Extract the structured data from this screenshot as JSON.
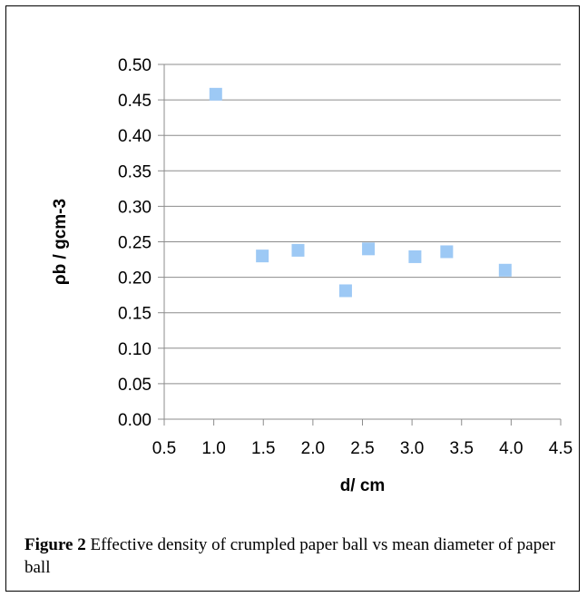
{
  "caption": {
    "label": "Figure 2",
    "text": "Effective density of crumpled paper ball vs mean diameter of paper ball"
  },
  "chart_data": {
    "type": "scatter",
    "title": "",
    "xlabel": "d/ cm",
    "ylabel": "ρb / gcm-3",
    "xlim": [
      0.5,
      4.5
    ],
    "ylim": [
      0.0,
      0.5
    ],
    "x_ticks": [
      "0.5",
      "1.0",
      "1.5",
      "2.0",
      "2.5",
      "3.0",
      "3.5",
      "4.0",
      "4.5"
    ],
    "y_ticks": [
      "0.00",
      "0.05",
      "0.10",
      "0.15",
      "0.20",
      "0.25",
      "0.30",
      "0.35",
      "0.40",
      "0.45",
      "0.50"
    ],
    "grid": "horizontal",
    "marker": "square",
    "marker_color": "#9DC9F5",
    "series": [
      {
        "points": [
          {
            "x": 1.02,
            "y": 0.458
          },
          {
            "x": 1.49,
            "y": 0.23
          },
          {
            "x": 1.85,
            "y": 0.238
          },
          {
            "x": 2.33,
            "y": 0.181
          },
          {
            "x": 2.56,
            "y": 0.24
          },
          {
            "x": 3.03,
            "y": 0.229
          },
          {
            "x": 3.35,
            "y": 0.236
          },
          {
            "x": 3.94,
            "y": 0.21
          }
        ]
      }
    ]
  }
}
